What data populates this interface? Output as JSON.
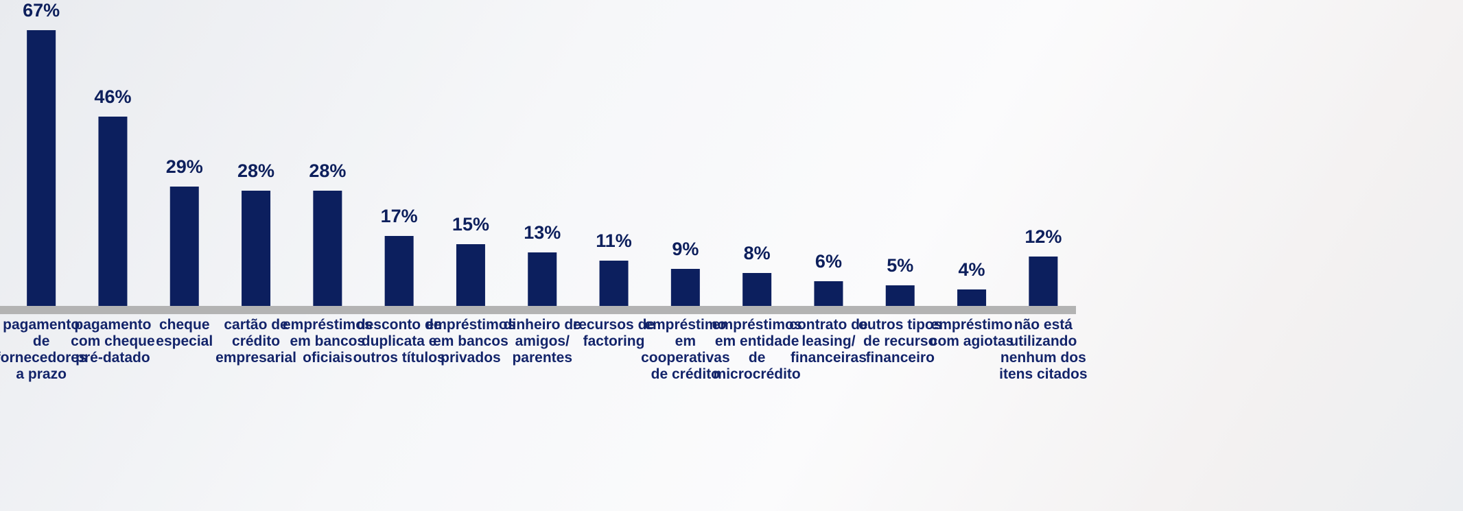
{
  "chart_data": {
    "type": "bar",
    "categories": [
      "pagamento de fornecedores a prazo",
      "pagamento com cheque pré-datado",
      "cheque especial",
      "cartão de crédito empresarial",
      "empréstimos em bancos oficiais",
      "desconto de duplicata e outros títulos",
      "empréstimos em bancos privados",
      "dinheiro de amigos/ parentes",
      "recursos de factoring",
      "empréstimo em cooperativas de crédito",
      "empréstimos em entidade de microcrédito",
      "contrato de leasing/ financeiras",
      "outros tipos de recurso financeiro",
      "empréstimo com agiotas",
      "não está utilizando nenhum dos itens citados"
    ],
    "values": [
      67,
      46,
      29,
      28,
      28,
      17,
      15,
      13,
      11,
      9,
      8,
      6,
      5,
      4,
      12
    ],
    "value_labels": [
      "67%",
      "46%",
      "29%",
      "28%",
      "28%",
      "17%",
      "15%",
      "13%",
      "11%",
      "9%",
      "8%",
      "6%",
      "5%",
      "4%",
      "12%"
    ],
    "color": "#0c1f5e"
  }
}
